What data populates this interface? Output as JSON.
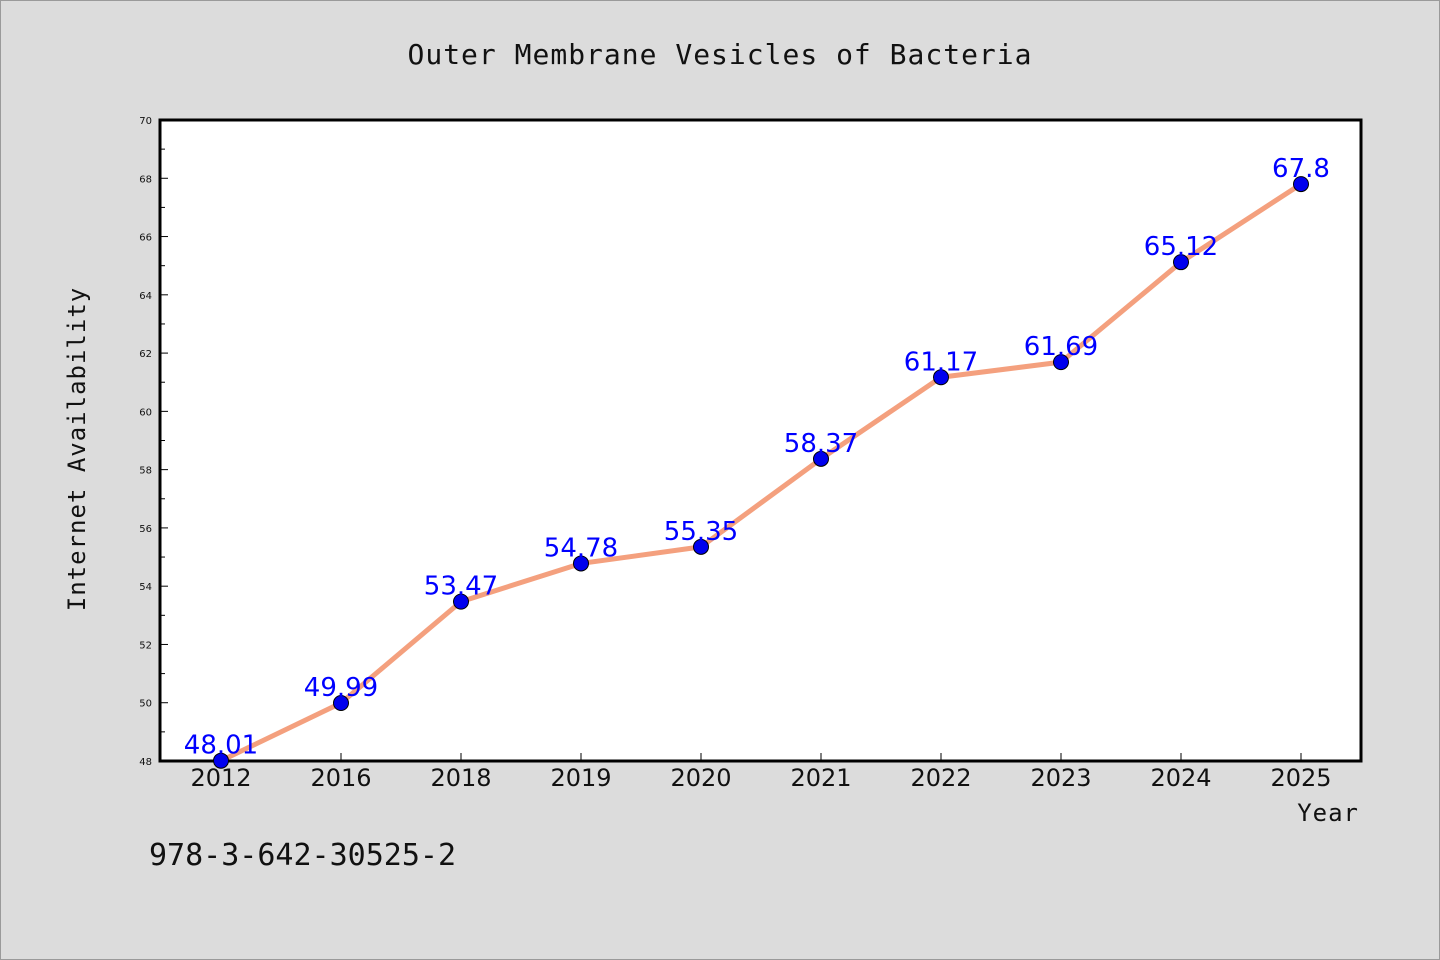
{
  "chart_data": {
    "type": "line",
    "title": "Outer Membrane Vesicles of Bacteria",
    "xlabel": "Year",
    "ylabel": "Internet Availability",
    "categories": [
      "2012",
      "2016",
      "2018",
      "2019",
      "2020",
      "2021",
      "2022",
      "2023",
      "2024",
      "2025"
    ],
    "values": [
      48.01,
      49.99,
      53.47,
      54.78,
      55.35,
      58.37,
      61.17,
      61.69,
      65.12,
      67.8
    ],
    "data_labels": [
      "48.01",
      "49.99",
      "53.47",
      "54.78",
      "55.35",
      "58.37",
      "61.17",
      "61.69",
      "65.12",
      "67.8"
    ],
    "ylim": [
      48,
      70
    ],
    "yticks": [
      48,
      50,
      52,
      54,
      56,
      58,
      60,
      62,
      64,
      66,
      68,
      70
    ],
    "grid": false,
    "legend": "none",
    "colors": {
      "line": "#f4a07e",
      "marker": "#0000ee",
      "label": "#0000ff",
      "plot_bg": "#ffffff",
      "figure_bg": "#dcdcdc"
    }
  },
  "footnote": "978-3-642-30525-2"
}
